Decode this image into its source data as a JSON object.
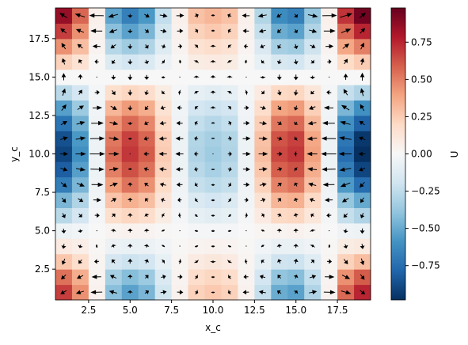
{
  "chart_data": {
    "type": "heatmap",
    "colormap": "RdBu_r",
    "xlabel": "x_c",
    "ylabel": "y_c",
    "x": [
      1,
      2,
      3,
      4,
      5,
      6,
      7,
      8,
      9,
      10,
      11,
      12,
      13,
      14,
      15,
      16,
      17,
      18,
      19
    ],
    "y": [
      1,
      2,
      3,
      4,
      5,
      6,
      7,
      8,
      9,
      10,
      11,
      12,
      13,
      14,
      15,
      16,
      17,
      18,
      19
    ],
    "xlim": [
      0.5,
      19.5
    ],
    "ylim": [
      0.5,
      19.5
    ],
    "xticks": [
      2.5,
      {
        "value": 5,
        "label": "5.0"
      },
      7.5,
      {
        "value": 10,
        "label": "10.0"
      },
      12.5,
      {
        "value": 15,
        "label": "15.0"
      },
      17.5
    ],
    "yticks": [
      2.5,
      {
        "value": 5,
        "label": "5.0"
      },
      7.5,
      {
        "value": 10,
        "label": "10.0"
      },
      12.5,
      {
        "value": 15,
        "label": "15.0"
      },
      17.5
    ],
    "values": [
      [
        0.68,
        0.45,
        0.04,
        -0.41,
        -0.53,
        -0.45,
        -0.19,
        0.04,
        0.23,
        0.26,
        0.23,
        0.04,
        -0.23,
        -0.49,
        -0.53,
        -0.3,
        0.04,
        0.56,
        0.75
      ],
      [
        0.54,
        0.36,
        0.03,
        -0.33,
        -0.42,
        -0.36,
        -0.15,
        0.03,
        0.18,
        0.21,
        0.18,
        0.03,
        -0.18,
        -0.39,
        -0.42,
        -0.24,
        0.03,
        0.45,
        0.6
      ],
      [
        0.27,
        0.18,
        0.02,
        -0.17,
        -0.21,
        -0.18,
        -0.08,
        0.02,
        0.09,
        0.11,
        0.09,
        0.02,
        -0.09,
        -0.2,
        -0.21,
        -0.12,
        0.02,
        0.23,
        0.3
      ],
      [
        0.09,
        0.06,
        0.01,
        -0.06,
        -0.07,
        -0.06,
        -0.03,
        0.01,
        0.03,
        0.04,
        0.03,
        0.01,
        -0.03,
        -0.07,
        -0.07,
        -0.04,
        0.01,
        0.08,
        0.1
      ],
      [
        -0.05,
        -0.03,
        0,
        0.03,
        0.04,
        0.03,
        0.01,
        0,
        -0.02,
        -0.02,
        -0.02,
        0,
        0.02,
        0.03,
        0.04,
        0.02,
        0,
        -0.04,
        -0.05
      ],
      [
        -0.27,
        -0.18,
        -0.02,
        0.17,
        0.21,
        0.18,
        0.08,
        -0.02,
        -0.09,
        -0.11,
        -0.09,
        -0.02,
        0.09,
        0.2,
        0.21,
        0.12,
        -0.02,
        -0.23,
        -0.3
      ],
      [
        -0.45,
        -0.3,
        -0.03,
        0.28,
        0.35,
        0.3,
        0.13,
        -0.03,
        -0.15,
        -0.18,
        -0.15,
        -0.03,
        0.15,
        0.33,
        0.35,
        0.2,
        -0.03,
        -0.38,
        -0.5
      ],
      [
        -0.68,
        -0.45,
        -0.04,
        0.41,
        0.53,
        0.45,
        0.19,
        -0.04,
        -0.23,
        -0.26,
        -0.23,
        -0.04,
        0.23,
        0.49,
        0.53,
        0.3,
        -0.04,
        -0.56,
        -0.75
      ],
      [
        -0.81,
        -0.54,
        -0.05,
        0.5,
        0.63,
        0.54,
        0.23,
        -0.05,
        -0.27,
        -0.32,
        -0.27,
        -0.05,
        0.27,
        0.59,
        0.63,
        0.36,
        -0.05,
        -0.68,
        -0.9
      ],
      [
        -0.9,
        -0.6,
        -0.05,
        0.55,
        0.7,
        0.6,
        0.25,
        -0.05,
        -0.3,
        -0.35,
        -0.3,
        -0.05,
        0.3,
        0.65,
        0.7,
        0.4,
        -0.05,
        -0.75,
        -1
      ],
      [
        -0.86,
        -0.57,
        -0.05,
        0.52,
        0.67,
        0.57,
        0.24,
        -0.05,
        -0.29,
        -0.33,
        -0.29,
        -0.05,
        0.29,
        0.62,
        0.67,
        0.38,
        -0.05,
        -0.71,
        -0.95
      ],
      [
        -0.72,
        -0.48,
        -0.04,
        0.44,
        0.56,
        0.48,
        0.2,
        -0.04,
        -0.24,
        -0.28,
        -0.24,
        -0.04,
        0.24,
        0.52,
        0.56,
        0.32,
        -0.04,
        -0.6,
        -0.8
      ],
      [
        -0.54,
        -0.36,
        -0.03,
        0.33,
        0.42,
        0.36,
        0.15,
        -0.03,
        -0.18,
        -0.21,
        -0.18,
        -0.03,
        0.18,
        0.39,
        0.42,
        0.24,
        -0.03,
        -0.45,
        -0.6
      ],
      [
        -0.27,
        -0.18,
        -0.02,
        0.17,
        0.21,
        0.18,
        0.08,
        -0.02,
        -0.09,
        -0.11,
        -0.09,
        -0.02,
        0.09,
        0.2,
        0.21,
        0.12,
        -0.02,
        -0.23,
        -0.3
      ],
      [
        0,
        0,
        0,
        0,
        0,
        0,
        0,
        0,
        0,
        0,
        0,
        0,
        0,
        0,
        0,
        0,
        0,
        0,
        0
      ],
      [
        0.23,
        0.15,
        0.01,
        -0.14,
        -0.18,
        -0.15,
        -0.06,
        0.01,
        0.08,
        0.09,
        0.08,
        0.01,
        -0.08,
        -0.16,
        -0.18,
        -0.1,
        0.01,
        0.19,
        0.25
      ],
      [
        0.45,
        0.3,
        0.03,
        -0.28,
        -0.35,
        -0.3,
        -0.13,
        0.03,
        0.15,
        0.18,
        0.15,
        0.03,
        -0.15,
        -0.33,
        -0.35,
        -0.2,
        0.03,
        0.38,
        0.5
      ],
      [
        0.68,
        0.45,
        0.04,
        -0.41,
        -0.53,
        -0.45,
        -0.19,
        0.04,
        0.23,
        0.26,
        0.23,
        0.04,
        -0.23,
        -0.49,
        -0.53,
        -0.3,
        0.04,
        0.56,
        0.75
      ],
      [
        0.86,
        0.57,
        0.05,
        -0.52,
        -0.67,
        -0.57,
        -0.24,
        0.05,
        0.29,
        0.33,
        0.29,
        0.05,
        -0.29,
        -0.62,
        -0.67,
        -0.38,
        0.05,
        0.71,
        0.95
      ]
    ],
    "quiver": {
      "color": "#000000",
      "u": [
        [
          -0.23,
          -0.3,
          -0.45,
          -0.3,
          0,
          0.15,
          0.23,
          0.23,
          0.11,
          0,
          -0.11,
          -0.23,
          -0.26,
          -0.15,
          0.08,
          0.3,
          0.45,
          0.38,
          0.19
        ],
        [
          -0.18,
          -0.24,
          -0.36,
          -0.24,
          0,
          0.12,
          0.18,
          0.18,
          0.09,
          0,
          -0.09,
          -0.18,
          -0.21,
          -0.12,
          0.06,
          0.24,
          0.36,
          0.3,
          0.15
        ],
        [
          -0.09,
          -0.12,
          -0.18,
          -0.12,
          0,
          0.06,
          0.09,
          0.09,
          0.05,
          0,
          -0.05,
          -0.09,
          -0.11,
          -0.06,
          0.03,
          0.12,
          0.18,
          0.15,
          0.08
        ],
        [
          -0.03,
          -0.04,
          -0.06,
          -0.04,
          0,
          0.02,
          0.03,
          0.03,
          0.02,
          0,
          -0.02,
          -0.03,
          -0.04,
          -0.02,
          0.01,
          0.04,
          0.06,
          0.05,
          0.03
        ],
        [
          0.02,
          0.02,
          0.03,
          0.02,
          0,
          -0.01,
          -0.02,
          -0.02,
          -0.01,
          0,
          0.01,
          0.02,
          0.02,
          0.01,
          -0.01,
          -0.02,
          -0.03,
          -0.03,
          -0.01
        ],
        [
          0.09,
          0.12,
          0.18,
          0.12,
          0,
          -0.06,
          -0.09,
          -0.09,
          -0.05,
          0,
          0.05,
          0.09,
          0.11,
          0.06,
          -0.03,
          -0.12,
          -0.18,
          -0.15,
          -0.08
        ],
        [
          0.15,
          0.2,
          0.3,
          0.2,
          0,
          -0.1,
          -0.15,
          -0.15,
          -0.08,
          0,
          0.08,
          0.15,
          0.18,
          0.1,
          -0.05,
          -0.2,
          -0.3,
          -0.25,
          -0.13
        ],
        [
          0.23,
          0.3,
          0.45,
          0.3,
          0,
          -0.15,
          -0.23,
          -0.23,
          -0.11,
          0,
          0.11,
          0.23,
          0.26,
          0.15,
          -0.08,
          -0.3,
          -0.45,
          -0.38,
          -0.19
        ],
        [
          0.27,
          0.36,
          0.54,
          0.36,
          0,
          -0.18,
          -0.27,
          -0.27,
          -0.14,
          0,
          0.14,
          0.27,
          0.32,
          0.18,
          -0.09,
          -0.36,
          -0.54,
          -0.45,
          -0.23
        ],
        [
          0.3,
          0.4,
          0.6,
          0.4,
          0,
          -0.2,
          -0.3,
          -0.3,
          -0.15,
          0,
          0.15,
          0.3,
          0.35,
          0.2,
          -0.1,
          -0.4,
          -0.6,
          -0.5,
          -0.25
        ],
        [
          0.29,
          0.38,
          0.57,
          0.38,
          0,
          -0.19,
          -0.29,
          -0.29,
          -0.14,
          0,
          0.14,
          0.29,
          0.33,
          0.19,
          -0.1,
          -0.38,
          -0.57,
          -0.48,
          -0.24
        ],
        [
          0.24,
          0.32,
          0.48,
          0.32,
          0,
          -0.16,
          -0.24,
          -0.24,
          -0.12,
          0,
          0.12,
          0.24,
          0.28,
          0.16,
          -0.08,
          -0.32,
          -0.48,
          -0.4,
          -0.2
        ],
        [
          0.18,
          0.24,
          0.36,
          0.24,
          0,
          -0.12,
          -0.18,
          -0.18,
          -0.09,
          0,
          0.09,
          0.18,
          0.21,
          0.12,
          -0.06,
          -0.24,
          -0.36,
          -0.3,
          -0.15
        ],
        [
          0.09,
          0.12,
          0.18,
          0.12,
          0,
          -0.06,
          -0.09,
          -0.09,
          -0.05,
          0,
          0.05,
          0.09,
          0.11,
          0.06,
          -0.03,
          -0.12,
          -0.18,
          -0.15,
          -0.08
        ],
        [
          0,
          0,
          0,
          0,
          0,
          0,
          0,
          0,
          0,
          0,
          0,
          0,
          0,
          0,
          0,
          0,
          0,
          0,
          0
        ],
        [
          -0.08,
          -0.1,
          -0.15,
          -0.1,
          0,
          0.05,
          0.08,
          0.08,
          0.04,
          0,
          -0.04,
          -0.08,
          -0.09,
          -0.05,
          0.03,
          0.1,
          0.15,
          0.13,
          0.06
        ],
        [
          -0.15,
          -0.2,
          -0.3,
          -0.2,
          0,
          0.1,
          0.15,
          0.15,
          0.08,
          0,
          -0.08,
          -0.15,
          -0.18,
          -0.1,
          0.05,
          0.2,
          0.3,
          0.25,
          0.13
        ],
        [
          -0.23,
          -0.3,
          -0.45,
          -0.3,
          0,
          0.15,
          0.23,
          0.23,
          0.11,
          0,
          -0.11,
          -0.23,
          -0.26,
          -0.15,
          0.08,
          0.3,
          0.45,
          0.38,
          0.19
        ],
        [
          -0.29,
          -0.38,
          -0.57,
          -0.38,
          0,
          0.19,
          0.29,
          0.29,
          0.14,
          0,
          -0.14,
          -0.29,
          -0.33,
          -0.19,
          0.1,
          0.38,
          0.57,
          0.48,
          0.24
        ]
      ],
      "v": [
        [
          -0.14,
          -0.09,
          -0.01,
          0.08,
          0.11,
          0.09,
          0.04,
          -0.01,
          -0.05,
          -0.05,
          -0.05,
          -0.01,
          0.05,
          0.1,
          0.11,
          0.06,
          -0.01,
          -0.11,
          -0.15
        ],
        [
          -0.18,
          -0.12,
          -0.01,
          0.11,
          0.14,
          0.12,
          0.05,
          -0.01,
          -0.06,
          -0.07,
          -0.06,
          -0.01,
          0.06,
          0.13,
          0.14,
          0.08,
          -0.01,
          -0.15,
          -0.2
        ],
        [
          -0.23,
          -0.15,
          -0.01,
          0.14,
          0.18,
          0.15,
          0.06,
          -0.01,
          -0.08,
          -0.09,
          -0.08,
          -0.01,
          0.08,
          0.16,
          0.18,
          0.1,
          -0.01,
          -0.19,
          -0.25
        ],
        [
          -0.18,
          -0.12,
          -0.01,
          0.11,
          0.14,
          0.12,
          0.05,
          -0.01,
          -0.06,
          -0.07,
          -0.06,
          -0.01,
          0.06,
          0.13,
          0.14,
          0.08,
          -0.01,
          -0.15,
          -0.2
        ],
        [
          -0.18,
          -0.12,
          -0.01,
          0.11,
          0.14,
          0.12,
          0.05,
          -0.01,
          -0.06,
          -0.07,
          -0.06,
          -0.01,
          0.06,
          0.13,
          0.14,
          0.08,
          -0.01,
          -0.15,
          -0.2
        ],
        [
          -0.18,
          -0.12,
          -0.01,
          0.11,
          0.14,
          0.12,
          0.05,
          -0.01,
          -0.06,
          -0.07,
          -0.06,
          -0.01,
          0.06,
          0.13,
          0.14,
          0.08,
          -0.01,
          -0.15,
          -0.2
        ],
        [
          -0.18,
          -0.12,
          -0.01,
          0.11,
          0.14,
          0.12,
          0.05,
          -0.01,
          -0.06,
          -0.07,
          -0.06,
          -0.01,
          0.06,
          0.13,
          0.14,
          0.08,
          -0.01,
          -0.15,
          -0.2
        ],
        [
          -0.18,
          -0.12,
          -0.01,
          0.11,
          0.14,
          0.12,
          0.05,
          -0.01,
          -0.06,
          -0.07,
          -0.06,
          -0.01,
          0.06,
          0.13,
          0.14,
          0.08,
          -0.01,
          -0.15,
          -0.2
        ],
        [
          -0.09,
          -0.06,
          -0.01,
          0.06,
          0.07,
          0.06,
          0.03,
          -0.01,
          -0.03,
          -0.04,
          -0.03,
          -0.01,
          0.03,
          0.07,
          0.07,
          0.04,
          -0.01,
          -0.08,
          -0.1
        ],
        [
          0,
          0,
          0,
          0,
          0,
          0,
          0,
          0,
          0,
          0,
          0,
          0,
          0,
          0,
          0,
          0,
          0,
          0,
          0
        ],
        [
          0.09,
          0.06,
          0.01,
          -0.06,
          -0.07,
          -0.06,
          -0.03,
          0.01,
          0.03,
          0.04,
          0.03,
          0.01,
          -0.03,
          -0.07,
          -0.07,
          -0.04,
          0.01,
          0.08,
          0.1
        ],
        [
          0.14,
          0.09,
          0.01,
          -0.08,
          -0.11,
          -0.09,
          -0.04,
          0.01,
          0.05,
          0.05,
          0.05,
          0.01,
          -0.05,
          -0.1,
          -0.11,
          -0.06,
          0.01,
          0.11,
          0.15
        ],
        [
          0.23,
          0.15,
          0.01,
          -0.14,
          -0.18,
          -0.15,
          -0.06,
          0.01,
          0.08,
          0.09,
          0.08,
          0.01,
          -0.08,
          -0.16,
          -0.18,
          -0.1,
          0.01,
          0.19,
          0.25
        ],
        [
          0.27,
          0.18,
          0.02,
          -0.17,
          -0.21,
          -0.18,
          -0.08,
          0.02,
          0.09,
          0.11,
          0.09,
          0.02,
          -0.09,
          -0.2,
          -0.21,
          -0.12,
          0.02,
          0.23,
          0.3
        ],
        [
          0.27,
          0.18,
          0.02,
          -0.17,
          -0.21,
          -0.18,
          -0.08,
          0.02,
          0.09,
          0.11,
          0.09,
          0.02,
          -0.09,
          -0.2,
          -0.21,
          -0.12,
          0.02,
          0.23,
          0.3
        ],
        [
          0.23,
          0.15,
          0.01,
          -0.14,
          -0.18,
          -0.15,
          -0.06,
          0.01,
          0.08,
          0.09,
          0.08,
          0.01,
          -0.08,
          -0.16,
          -0.18,
          -0.1,
          0.01,
          0.19,
          0.25
        ],
        [
          0.23,
          0.15,
          0.01,
          -0.14,
          -0.18,
          -0.15,
          -0.06,
          0.01,
          0.08,
          0.09,
          0.08,
          0.01,
          -0.08,
          -0.16,
          -0.18,
          -0.1,
          0.01,
          0.19,
          0.25
        ],
        [
          0.18,
          0.12,
          0.01,
          -0.11,
          -0.14,
          -0.12,
          -0.05,
          0.01,
          0.06,
          0.07,
          0.06,
          0.01,
          -0.06,
          -0.13,
          -0.14,
          -0.08,
          0.01,
          0.15,
          0.2
        ],
        [
          0.18,
          0.12,
          0.01,
          -0.11,
          -0.14,
          -0.12,
          -0.05,
          0.01,
          0.06,
          0.07,
          0.06,
          0.01,
          -0.06,
          -0.13,
          -0.14,
          -0.08,
          0.01,
          0.15,
          0.2
        ]
      ]
    },
    "colorbar": {
      "label": "U",
      "clim": [
        -0.98,
        0.98
      ],
      "ticks": [
        {
          "value": -0.75,
          "label": "−0.75"
        },
        {
          "value": -0.5,
          "label": "−0.50"
        },
        {
          "value": -0.25,
          "label": "−0.25"
        },
        {
          "value": 0,
          "label": "0.00"
        },
        {
          "value": 0.25,
          "label": "0.25"
        },
        {
          "value": 0.5,
          "label": "0.50"
        },
        {
          "value": 0.75,
          "label": "0.75"
        }
      ]
    }
  }
}
